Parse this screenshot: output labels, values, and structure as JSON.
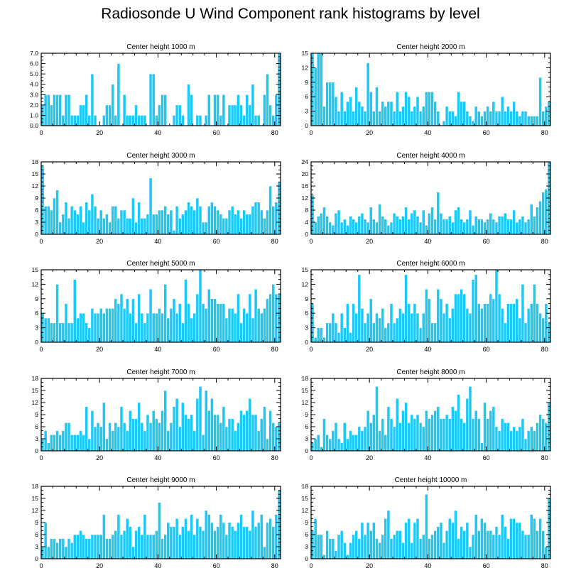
{
  "title": "Radiosonde U Wind Component rank histograms by level",
  "colors": {
    "bar": "#1EC8F5",
    "bar_edge": "#ffffff",
    "axis": "#000000"
  },
  "chart_data": [
    {
      "type": "bar",
      "title": "Center height 1000 m",
      "xlabel": "",
      "ylabel": "",
      "xlim": [
        0,
        82
      ],
      "ylim": [
        0,
        7
      ],
      "xticks": [
        0,
        20,
        40,
        60,
        80
      ],
      "yticks": [
        0,
        1,
        2,
        3,
        4,
        5,
        6,
        7
      ],
      "yticklabels": [
        "0.0",
        "1.0",
        "2.0",
        "3.0",
        "4.0",
        "5.0",
        "6.0",
        "7.0"
      ],
      "values": [
        2,
        3,
        3,
        2,
        3,
        3,
        3,
        1,
        3,
        3,
        1,
        1,
        1,
        2,
        2,
        3,
        1,
        5,
        1,
        0,
        0,
        1,
        2,
        2,
        4,
        1,
        6,
        0,
        3,
        1,
        1,
        1,
        2,
        1,
        1,
        1,
        0,
        5,
        5,
        1,
        2,
        3,
        3,
        0,
        0,
        1,
        2,
        2,
        1,
        0,
        4,
        3,
        0,
        1,
        1,
        0,
        1,
        3,
        0,
        3,
        3,
        1,
        3,
        0,
        2,
        2,
        2,
        3,
        2,
        1,
        3,
        2,
        4,
        1,
        1,
        0,
        3,
        5,
        2,
        1,
        3,
        7
      ],
      "grid": false
    },
    {
      "type": "bar",
      "title": "Center height 2000 m",
      "xlabel": "",
      "ylabel": "",
      "xlim": [
        0,
        82
      ],
      "ylim": [
        0,
        15
      ],
      "xticks": [
        0,
        20,
        40,
        60,
        80
      ],
      "yticks": [
        0,
        3,
        6,
        9,
        12,
        15
      ],
      "yticklabels": [
        "0",
        "3",
        "6",
        "9",
        "12",
        "15"
      ],
      "values": [
        15,
        12,
        15,
        15,
        4,
        9,
        9,
        9,
        6,
        3,
        7,
        3,
        5,
        6,
        3,
        8,
        5,
        4,
        3,
        13,
        7,
        3,
        8,
        3,
        5,
        4,
        5,
        5,
        3,
        7,
        3,
        4,
        7,
        6,
        3,
        4,
        6,
        3,
        4,
        7,
        7,
        7,
        5,
        3,
        0,
        1,
        4,
        3,
        3,
        2,
        7,
        5,
        5,
        3,
        2,
        1,
        4,
        3,
        2,
        3,
        4,
        3,
        5,
        3,
        3,
        6,
        3,
        4,
        3,
        5,
        3,
        2,
        3,
        3,
        2,
        2,
        2,
        2,
        10,
        3,
        4,
        5
      ],
      "grid": false
    },
    {
      "type": "bar",
      "title": "Center height 3000 m",
      "xlabel": "",
      "ylabel": "",
      "xlim": [
        0,
        82
      ],
      "ylim": [
        0,
        18
      ],
      "xticks": [
        0,
        20,
        40,
        60,
        80
      ],
      "yticks": [
        0,
        3,
        6,
        9,
        12,
        15,
        18
      ],
      "yticklabels": [
        "0",
        "3",
        "6",
        "9",
        "12",
        "15",
        "18"
      ],
      "values": [
        17,
        7,
        7,
        6,
        9,
        11,
        3,
        5,
        8,
        4,
        7,
        6,
        5,
        7,
        3,
        8,
        6,
        10,
        7,
        4,
        6,
        4,
        5,
        3,
        7,
        7,
        4,
        6,
        6,
        4,
        4,
        9,
        3,
        8,
        4,
        4,
        5,
        14,
        5,
        5,
        6,
        6,
        7,
        5,
        6,
        1,
        7,
        4,
        5,
        6,
        8,
        7,
        6,
        9,
        7,
        3,
        3,
        7,
        8,
        7,
        6,
        5,
        4,
        4,
        6,
        7,
        5,
        6,
        4,
        6,
        5,
        5,
        7,
        8,
        8,
        6,
        4,
        6,
        12,
        7,
        8,
        13
      ],
      "grid": false
    },
    {
      "type": "bar",
      "title": "Center height 4000 m",
      "xlabel": "",
      "ylabel": "",
      "xlim": [
        0,
        82
      ],
      "ylim": [
        0,
        24
      ],
      "xticks": [
        0,
        20,
        40,
        60,
        80
      ],
      "yticks": [
        0,
        4,
        8,
        12,
        16,
        20,
        24
      ],
      "yticklabels": [
        "0",
        "4",
        "8",
        "12",
        "16",
        "20",
        "24"
      ],
      "values": [
        13,
        4,
        6,
        7,
        9,
        6,
        4,
        3,
        7,
        8,
        4,
        5,
        3,
        6,
        5,
        4,
        6,
        7,
        5,
        4,
        9,
        5,
        4,
        10,
        6,
        5,
        3,
        4,
        7,
        6,
        5,
        6,
        9,
        5,
        7,
        8,
        6,
        4,
        8,
        3,
        7,
        9,
        5,
        14,
        7,
        5,
        5,
        6,
        4,
        8,
        9,
        5,
        4,
        5,
        8,
        3,
        6,
        5,
        5,
        4,
        5,
        7,
        5,
        4,
        6,
        6,
        7,
        5,
        5,
        8,
        4,
        5,
        6,
        4,
        5,
        10,
        6,
        9,
        11,
        14,
        15,
        24
      ],
      "grid": false
    },
    {
      "type": "bar",
      "title": "Center height 5000 m",
      "xlabel": "",
      "ylabel": "",
      "xlim": [
        0,
        82
      ],
      "ylim": [
        0,
        15
      ],
      "xticks": [
        0,
        20,
        40,
        60,
        80
      ],
      "yticks": [
        0,
        3,
        6,
        9,
        12,
        15
      ],
      "yticklabels": [
        "0",
        "3",
        "6",
        "9",
        "12",
        "15"
      ],
      "values": [
        6,
        5,
        5,
        4,
        4,
        12,
        4,
        4,
        8,
        4,
        4,
        13,
        5,
        6,
        6,
        4,
        3,
        7,
        6,
        6,
        7,
        6,
        7,
        7,
        7,
        9,
        8,
        10,
        7,
        9,
        6,
        9,
        4,
        10,
        6,
        4,
        6,
        11,
        6,
        6,
        7,
        6,
        12,
        5,
        7,
        9,
        6,
        8,
        4,
        13,
        8,
        5,
        6,
        10,
        15,
        8,
        7,
        11,
        9,
        9,
        8,
        8,
        8,
        5,
        7,
        7,
        6,
        10,
        4,
        7,
        6,
        10,
        5,
        11,
        7,
        6,
        7,
        9,
        10,
        12,
        10,
        10
      ],
      "grid": false
    },
    {
      "type": "bar",
      "title": "Center height 6000 m",
      "xlabel": "",
      "ylabel": "",
      "xlim": [
        0,
        82
      ],
      "ylim": [
        0,
        15
      ],
      "xticks": [
        0,
        20,
        40,
        60,
        80
      ],
      "yticks": [
        0,
        3,
        6,
        9,
        12,
        15
      ],
      "yticklabels": [
        "0",
        "3",
        "6",
        "9",
        "12",
        "15"
      ],
      "values": [
        8,
        1,
        3,
        3,
        1,
        4,
        4,
        6,
        4,
        2,
        6,
        3,
        8,
        2,
        8,
        6,
        14,
        7,
        4,
        6,
        9,
        4,
        6,
        5,
        7,
        3,
        4,
        8,
        4,
        5,
        7,
        6,
        14,
        8,
        6,
        8,
        6,
        3,
        6,
        11,
        9,
        4,
        4,
        11,
        9,
        6,
        8,
        5,
        7,
        10,
        10,
        11,
        10,
        7,
        6,
        13,
        14,
        8,
        7,
        8,
        8,
        10,
        9,
        15,
        10,
        7,
        4,
        8,
        8,
        8,
        9,
        5,
        12,
        4,
        7,
        8,
        12,
        8,
        6,
        5,
        8,
        4
      ],
      "grid": false
    },
    {
      "type": "bar",
      "title": "Center height 7000 m",
      "xlabel": "",
      "ylabel": "",
      "xlim": [
        0,
        82
      ],
      "ylim": [
        0,
        18
      ],
      "xticks": [
        0,
        20,
        40,
        60,
        80
      ],
      "yticks": [
        0,
        3,
        6,
        9,
        12,
        15,
        18
      ],
      "yticklabels": [
        "0",
        "3",
        "6",
        "9",
        "12",
        "15",
        "18"
      ],
      "values": [
        3,
        5,
        2,
        4,
        4,
        5,
        4,
        5,
        7,
        7,
        4,
        4,
        4,
        5,
        4,
        11,
        3,
        10,
        6,
        7,
        6,
        12,
        3,
        7,
        5,
        7,
        6,
        11,
        7,
        5,
        10,
        8,
        8,
        12,
        7,
        5,
        9,
        7,
        10,
        8,
        7,
        10,
        15,
        5,
        7,
        11,
        13,
        6,
        12,
        9,
        8,
        9,
        5,
        13,
        16,
        4,
        15,
        10,
        13,
        9,
        9,
        7,
        11,
        6,
        8,
        8,
        5,
        7,
        10,
        9,
        10,
        13,
        9,
        9,
        5,
        8,
        11,
        3,
        10,
        7,
        6,
        7
      ],
      "grid": false
    },
    {
      "type": "bar",
      "title": "Center height 8000 m",
      "xlabel": "",
      "ylabel": "",
      "xlim": [
        0,
        82
      ],
      "ylim": [
        0,
        18
      ],
      "xticks": [
        0,
        20,
        40,
        60,
        80
      ],
      "yticks": [
        0,
        3,
        6,
        9,
        12,
        15,
        18
      ],
      "yticklabels": [
        "0",
        "3",
        "6",
        "9",
        "12",
        "15",
        "18"
      ],
      "values": [
        2,
        3,
        4,
        1,
        8,
        4,
        3,
        5,
        7,
        3,
        2,
        7,
        3,
        5,
        4,
        4,
        6,
        5,
        6,
        10,
        7,
        9,
        16,
        5,
        8,
        4,
        11,
        8,
        6,
        13,
        7,
        10,
        12,
        7,
        9,
        8,
        9,
        7,
        6,
        10,
        8,
        9,
        10,
        11,
        8,
        8,
        9,
        8,
        11,
        10,
        14,
        8,
        7,
        13,
        16,
        8,
        10,
        8,
        2,
        12,
        8,
        10,
        11,
        6,
        5,
        8,
        7,
        7,
        5,
        6,
        5,
        6,
        8,
        3,
        5,
        6,
        5,
        7,
        9,
        8,
        7,
        12
      ],
      "grid": false
    },
    {
      "type": "bar",
      "title": "Center height 9000 m",
      "xlabel": "",
      "ylabel": "",
      "xlim": [
        0,
        82
      ],
      "ylim": [
        0,
        18
      ],
      "xticks": [
        0,
        20,
        40,
        60,
        80
      ],
      "yticks": [
        0,
        3,
        6,
        9,
        12,
        15,
        18
      ],
      "yticklabels": [
        "0",
        "3",
        "6",
        "9",
        "12",
        "15",
        "18"
      ],
      "values": [
        3,
        9,
        3,
        5,
        5,
        4,
        5,
        5,
        3,
        5,
        4,
        6,
        6,
        7,
        6,
        5,
        5,
        6,
        6,
        6,
        6,
        11,
        5,
        5,
        6,
        7,
        11,
        6,
        7,
        10,
        8,
        3,
        7,
        8,
        6,
        11,
        6,
        6,
        6,
        7,
        14,
        5,
        6,
        9,
        8,
        8,
        10,
        6,
        8,
        10,
        7,
        11,
        6,
        10,
        8,
        7,
        12,
        11,
        9,
        7,
        8,
        11,
        9,
        6,
        9,
        8,
        7,
        9,
        11,
        8,
        8,
        7,
        12,
        8,
        9,
        11,
        3,
        9,
        10,
        8,
        11,
        17
      ],
      "grid": false
    },
    {
      "type": "bar",
      "title": "Center height 10000 m",
      "xlabel": "",
      "ylabel": "",
      "xlim": [
        0,
        82
      ],
      "ylim": [
        0,
        18
      ],
      "xticks": [
        0,
        20,
        40,
        60,
        80
      ],
      "yticks": [
        0,
        3,
        6,
        9,
        12,
        15,
        18
      ],
      "yticklabels": [
        "0",
        "3",
        "6",
        "9",
        "12",
        "15",
        "18"
      ],
      "values": [
        7,
        10,
        6,
        6,
        1,
        7,
        5,
        5,
        2,
        6,
        7,
        4,
        1,
        4,
        6,
        7,
        5,
        9,
        6,
        9,
        7,
        9,
        5,
        4,
        6,
        10,
        12,
        5,
        6,
        7,
        7,
        4,
        9,
        10,
        4,
        9,
        10,
        5,
        6,
        16,
        5,
        6,
        7,
        8,
        9,
        4,
        7,
        10,
        9,
        12,
        5,
        8,
        7,
        9,
        3,
        6,
        11,
        7,
        10,
        9,
        7,
        7,
        6,
        8,
        6,
        11,
        8,
        5,
        10,
        10,
        9,
        9,
        7,
        6,
        6,
        11,
        10,
        7,
        10,
        7,
        3,
        15
      ],
      "grid": false
    }
  ]
}
